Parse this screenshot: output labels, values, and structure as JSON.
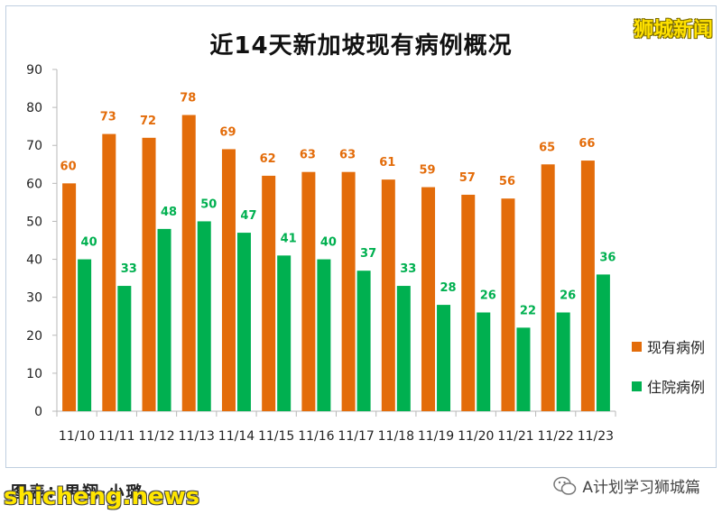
{
  "watermark_top": "狮城新闻",
  "credit": "图表：·男翔·小璐",
  "site_watermark": "shicheng.news",
  "wechat_account": "A计划学习狮城篇",
  "chart_data": {
    "type": "bar",
    "title": "近14天新加坡现有病例概况",
    "categories": [
      "11/10",
      "11/11",
      "11/12",
      "11/13",
      "11/14",
      "11/15",
      "11/16",
      "11/17",
      "11/18",
      "11/19",
      "11/20",
      "11/21",
      "11/22",
      "11/23"
    ],
    "series": [
      {
        "name": "现有病例",
        "color": "#e36c0a",
        "values": [
          60,
          73,
          72,
          78,
          69,
          62,
          63,
          63,
          61,
          59,
          57,
          56,
          65,
          66
        ]
      },
      {
        "name": "住院病例",
        "color": "#00b050",
        "values": [
          40,
          33,
          48,
          50,
          47,
          41,
          40,
          37,
          33,
          28,
          26,
          22,
          26,
          36
        ]
      }
    ],
    "ylim": [
      0,
      90
    ],
    "yticks": [
      0,
      10,
      20,
      30,
      40,
      50,
      60,
      70,
      80,
      90
    ],
    "grid": false,
    "legend": "right"
  }
}
